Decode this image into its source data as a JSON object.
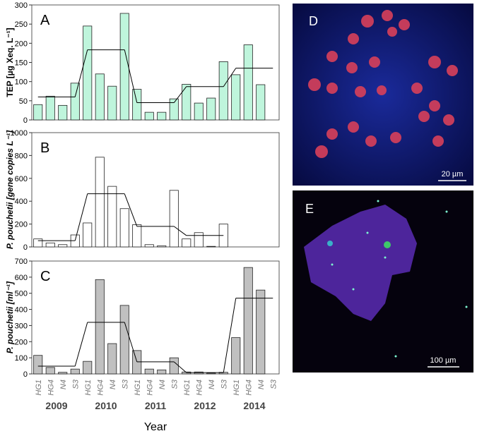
{
  "chart_data": [
    {
      "type": "bar",
      "panel": "A",
      "ylabel": "TEP [µg Xeq. L⁻¹]",
      "color": "#bff5dc",
      "values": [
        40,
        62,
        38,
        96,
        245,
        120,
        88,
        278,
        80,
        20,
        20,
        55,
        93,
        44,
        57,
        152,
        118,
        196,
        92,
        null
      ],
      "mean_line": [
        60,
        183,
        45,
        87,
        135
      ],
      "ylim": [
        0,
        300
      ],
      "yticks": [
        0,
        50,
        100,
        150,
        200,
        250,
        300
      ]
    },
    {
      "type": "bar",
      "panel": "B",
      "ylabel": "P. pouchetii [gene copies L⁻¹]",
      "color": "#ffffff",
      "values": [
        70,
        35,
        20,
        105,
        210,
        785,
        530,
        335,
        195,
        20,
        10,
        495,
        70,
        125,
        5,
        200,
        null,
        null,
        null,
        null
      ],
      "mean_line": [
        55,
        465,
        180,
        100,
        null
      ],
      "ylim": [
        0,
        1000
      ],
      "yticks": [
        0,
        200,
        400,
        600,
        800,
        1000
      ]
    },
    {
      "type": "bar",
      "panel": "C",
      "ylabel": "P. pouchetii [ml⁻¹]",
      "color": "#c0c0c0",
      "categories": [
        "HG1",
        "HG4",
        "N4",
        "S3",
        "HG1",
        "HG4",
        "N4",
        "S3",
        "HG1",
        "HG4",
        "N4",
        "S3",
        "HG1",
        "HG4",
        "N4",
        "S3",
        "HG1",
        "HG4",
        "N4",
        "S3"
      ],
      "groups": [
        "2009",
        "2010",
        "2011",
        "2012",
        "2014"
      ],
      "xlabel": "Year",
      "values": [
        115,
        40,
        10,
        30,
        78,
        585,
        188,
        425,
        145,
        30,
        25,
        100,
        12,
        12,
        5,
        10,
        225,
        660,
        520,
        null
      ],
      "mean_line": [
        48,
        320,
        75,
        8,
        470
      ],
      "ylim": [
        0,
        700
      ],
      "yticks": [
        0,
        100,
        200,
        300,
        400,
        500,
        600,
        700
      ]
    }
  ],
  "images": [
    {
      "label": "D",
      "scale_bar": "20 µm"
    },
    {
      "label": "E",
      "scale_bar": "100 µm"
    }
  ]
}
